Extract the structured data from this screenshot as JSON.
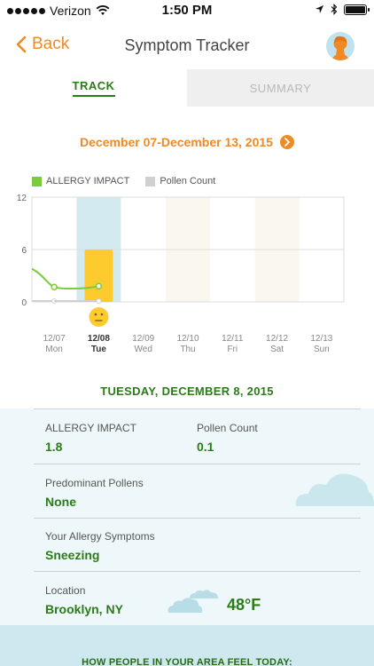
{
  "status_bar": {
    "carrier": "Verizon",
    "time": "1:50 PM"
  },
  "nav": {
    "back_label": "Back",
    "title": "Symptom Tracker"
  },
  "tabs": [
    {
      "label": "TRACK",
      "active": true
    },
    {
      "label": "SUMMARY",
      "active": false
    }
  ],
  "week_range": "December 07-December 13, 2015",
  "legend": {
    "allergy_impact": "ALLERGY IMPACT",
    "pollen_count": "Pollen Count"
  },
  "colors": {
    "accent": "#f08a24",
    "green": "#2b7b18",
    "line": "#7ccb3a",
    "bar": "#fecb2f",
    "highlight": "#d3ebf0"
  },
  "chart_data": {
    "type": "bar",
    "y_ticks": [
      "12",
      "6",
      "0"
    ],
    "ylim": [
      0,
      12
    ],
    "days": [
      {
        "date": "12/07",
        "day": "Mon",
        "selected": false
      },
      {
        "date": "12/08",
        "day": "Tue",
        "selected": true
      },
      {
        "date": "12/09",
        "day": "Wed",
        "selected": false
      },
      {
        "date": "12/10",
        "day": "Thu",
        "selected": false
      },
      {
        "date": "12/11",
        "day": "Fri",
        "selected": false
      },
      {
        "date": "12/12",
        "day": "Sat",
        "selected": false
      },
      {
        "date": "12/13",
        "day": "Sun",
        "selected": false
      }
    ],
    "series": [
      {
        "name": "ALLERGY IMPACT",
        "values": [
          1.7,
          1.8,
          null,
          null,
          null,
          null,
          null
        ]
      },
      {
        "name": "Pollen Count",
        "values": [
          0.1,
          0.1,
          null,
          null,
          null,
          null,
          null
        ]
      }
    ],
    "bar_values": [
      null,
      6,
      null,
      null,
      null,
      null,
      null
    ],
    "shaded_days": [
      3,
      5
    ]
  },
  "selected_date_header": "TUESDAY, DECEMBER 8, 2015",
  "details": {
    "allergy_impact_label": "ALLERGY IMPACT",
    "allergy_impact_value": "1.8",
    "pollen_count_label": "Pollen Count",
    "pollen_count_value": "0.1",
    "pollens_label": "Predominant Pollens",
    "pollens_value": "None",
    "symptoms_label": "Your Allergy Symptoms",
    "symptoms_value": "Sneezing",
    "location_label": "Location",
    "location_value": "Brooklyn, NY",
    "temperature": "48°F"
  },
  "footer_text": "HOW PEOPLE IN YOUR AREA FEEL TODAY:"
}
